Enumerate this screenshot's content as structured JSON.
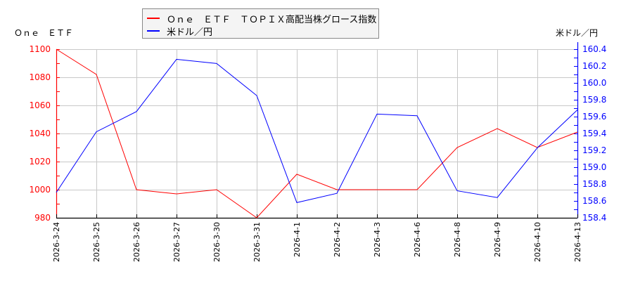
{
  "chart_data": {
    "type": "line",
    "title": "",
    "legend_position": "top",
    "grid": true,
    "categories": [
      "2026-3-24",
      "2026-3-25",
      "2026-3-26",
      "2026-3-27",
      "2026-3-30",
      "2026-3-31",
      "2026-4-1",
      "2026-4-2",
      "2026-4-3",
      "2026-4-6",
      "2026-4-8",
      "2026-4-9",
      "2026-4-10",
      "2026-4-13"
    ],
    "series": [
      {
        "name": "Ｏｎｅ　ＥＴＦ　ＴＯＰＩＸ高配当株グロース指数",
        "axis": "left",
        "color": "#ff0000",
        "values": [
          1100,
          1082,
          1000,
          997,
          1000,
          980,
          1011,
          1000,
          1000,
          1000,
          1030,
          1043.5,
          1030,
          1041
        ]
      },
      {
        "name": "米ドル／円",
        "axis": "right",
        "color": "#0000ff",
        "values": [
          158.7,
          159.42,
          159.66,
          160.28,
          160.23,
          159.85,
          158.58,
          158.69,
          159.63,
          159.61,
          158.72,
          158.64,
          159.23,
          159.68
        ]
      }
    ],
    "left_axis": {
      "label": "Ｏｎｅ　ＥＴＦ",
      "ylim": [
        980,
        1100
      ],
      "ticks": [
        980,
        1000,
        1020,
        1040,
        1060,
        1080,
        1100
      ],
      "tick_labels": [
        "980",
        "1000",
        "1020",
        "1040",
        "1060",
        "1080",
        "1100"
      ],
      "color": "#ff0000"
    },
    "right_axis": {
      "label": "米ドル／円",
      "ylim": [
        158.4,
        160.4
      ],
      "ticks": [
        158.4,
        158.6,
        158.8,
        159.0,
        159.2,
        159.4,
        159.6,
        159.8,
        160.0,
        160.2,
        160.4
      ],
      "tick_labels": [
        "158.4",
        "158.6",
        "158.8",
        "159.0",
        "159.2",
        "159.4",
        "159.6",
        "159.8",
        "160.0",
        "160.2",
        "160.4"
      ],
      "color": "#0000ff"
    },
    "xlabel": "",
    "ylabel": "Ｏｎｅ　ＥＴＦ",
    "ylabel_right": "米ドル／円"
  },
  "legend": {
    "items": [
      {
        "label": "Ｏｎｅ　ＥＴＦ　ＴＯＰＩＸ高配当株グロース指数",
        "color": "#ff0000"
      },
      {
        "label": "米ドル／円",
        "color": "#0000ff"
      }
    ]
  },
  "axes": {
    "left_title": "Ｏｎｅ　ＥＴＦ",
    "right_title": "米ドル／円"
  }
}
